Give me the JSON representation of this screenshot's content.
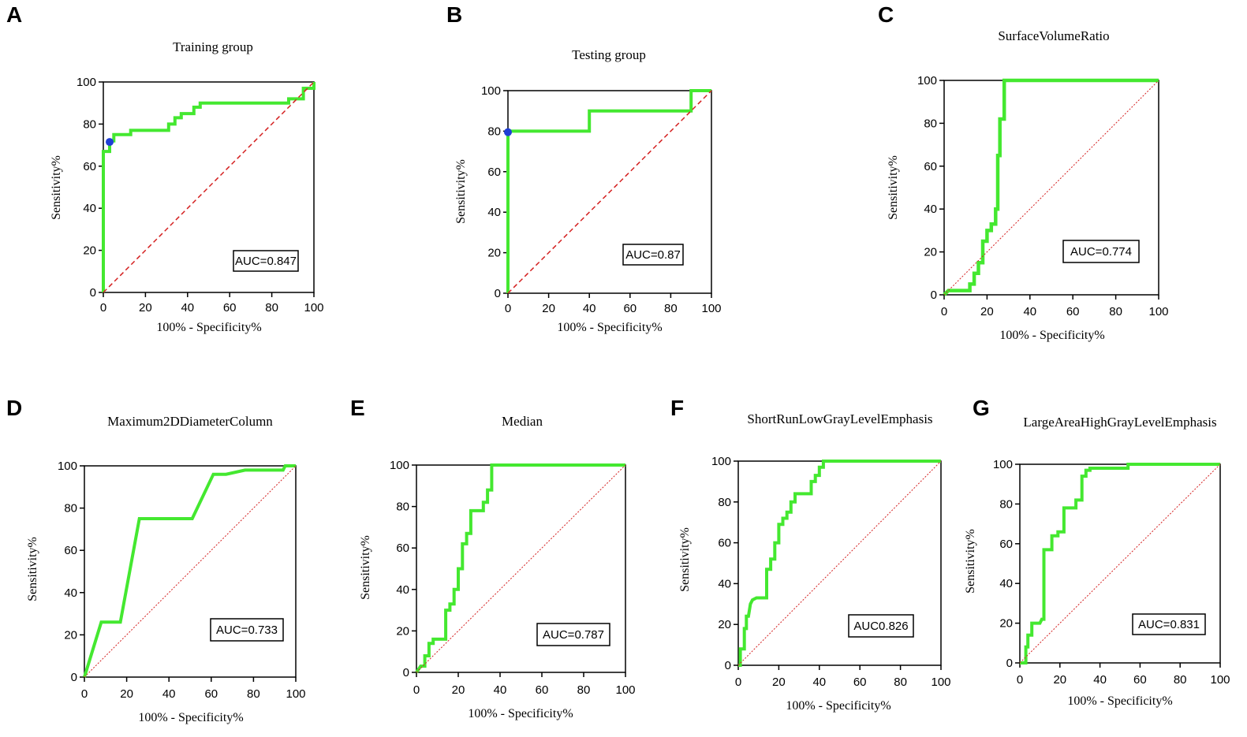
{
  "chart_data": [
    {
      "panel": "A",
      "type": "line",
      "title": "Training group",
      "xlabel": "100% - Specificity%",
      "ylabel": "Sensitivity%",
      "xlim": [
        0,
        100
      ],
      "ylim": [
        0,
        100
      ],
      "xticks": [
        "0",
        "20",
        "40",
        "60",
        "80",
        "100"
      ],
      "yticks": [
        "0",
        "20",
        "40",
        "60",
        "80",
        "100"
      ],
      "annotation": "AUC=0.847",
      "colors": {
        "roc": "#44e830",
        "reference": "#d42020",
        "marker": "#1f3fd6"
      },
      "reference_style": "dashed",
      "marker_point": {
        "x": 3,
        "y": 71.5
      },
      "series": [
        {
          "name": "ROC",
          "x": [
            0,
            0,
            3,
            3,
            5,
            5,
            13,
            13,
            31,
            31,
            34,
            34,
            37,
            37,
            43,
            43,
            46,
            46,
            88,
            88,
            95,
            95,
            100,
            100
          ],
          "y": [
            0,
            67,
            67,
            72,
            72,
            75,
            75,
            77,
            77,
            80,
            80,
            83,
            83,
            85,
            85,
            88,
            88,
            90,
            90,
            92,
            92,
            97,
            97,
            100
          ]
        },
        {
          "name": "Reference",
          "x": [
            0,
            100
          ],
          "y": [
            0,
            100
          ]
        }
      ]
    },
    {
      "panel": "B",
      "type": "line",
      "title": "Testing group",
      "xlabel": "100% - Specificity%",
      "ylabel": "Sensitivity%",
      "xlim": [
        0,
        100
      ],
      "ylim": [
        0,
        100
      ],
      "xticks": [
        "0",
        "20",
        "40",
        "60",
        "80",
        "100"
      ],
      "yticks": [
        "0",
        "20",
        "40",
        "60",
        "80",
        "100"
      ],
      "annotation": "AUC=0.87",
      "colors": {
        "roc": "#44e830",
        "reference": "#d42020",
        "marker": "#1f3fd6"
      },
      "reference_style": "dashed",
      "marker_point": {
        "x": 0,
        "y": 79.5
      },
      "series": [
        {
          "name": "ROC",
          "x": [
            0,
            0,
            40,
            40,
            90,
            90,
            100
          ],
          "y": [
            0,
            80,
            80,
            90,
            90,
            100,
            100
          ]
        },
        {
          "name": "Reference",
          "x": [
            0,
            100
          ],
          "y": [
            0,
            100
          ]
        }
      ]
    },
    {
      "panel": "C",
      "type": "line",
      "title": "SurfaceVolumeRatio",
      "xlabel": "100% - Specificity%",
      "ylabel": "Sensitivity%",
      "xlim": [
        0,
        100
      ],
      "ylim": [
        0,
        100
      ],
      "xticks": [
        "0",
        "20",
        "40",
        "60",
        "80",
        "100"
      ],
      "yticks": [
        "0",
        "20",
        "40",
        "60",
        "80",
        "100"
      ],
      "annotation": "AUC=0.774",
      "colors": {
        "roc": "#44e830",
        "reference": "#d42020"
      },
      "reference_style": "dotted",
      "series": [
        {
          "name": "ROC",
          "x": [
            0,
            2,
            12,
            12,
            14,
            14,
            16,
            16,
            18,
            18,
            20,
            20,
            22,
            22,
            24,
            24,
            25,
            25,
            26,
            26,
            28,
            28,
            100
          ],
          "y": [
            0,
            2,
            2,
            5,
            5,
            10,
            10,
            15,
            15,
            25,
            25,
            30,
            30,
            33,
            33,
            40,
            40,
            65,
            65,
            82,
            82,
            100,
            100
          ]
        },
        {
          "name": "Reference",
          "x": [
            0,
            100
          ],
          "y": [
            0,
            100
          ]
        }
      ]
    },
    {
      "panel": "D",
      "type": "line",
      "title": "Maximum2DDiameterColumn",
      "xlabel": "100% - Specificity%",
      "ylabel": "Sensitivity%",
      "xlim": [
        0,
        100
      ],
      "ylim": [
        0,
        100
      ],
      "xticks": [
        "0",
        "20",
        "40",
        "60",
        "80",
        "100"
      ],
      "yticks": [
        "0",
        "20",
        "40",
        "60",
        "80",
        "100"
      ],
      "annotation": "AUC=0.733",
      "colors": {
        "roc": "#44e830",
        "reference": "#d42020"
      },
      "reference_style": "dotted",
      "series": [
        {
          "name": "ROC",
          "x": [
            0,
            8,
            17,
            26,
            51,
            61,
            67,
            76,
            94,
            95,
            100
          ],
          "y": [
            0,
            26,
            26,
            75,
            75,
            96,
            96,
            98,
            98,
            100,
            100
          ]
        },
        {
          "name": "Reference",
          "x": [
            0,
            100
          ],
          "y": [
            0,
            100
          ]
        }
      ]
    },
    {
      "panel": "E",
      "type": "line",
      "title": "Median",
      "xlabel": "100% - Specificity%",
      "ylabel": "Sensitivity%",
      "xlim": [
        0,
        100
      ],
      "ylim": [
        0,
        100
      ],
      "xticks": [
        "0",
        "20",
        "40",
        "60",
        "80",
        "100"
      ],
      "yticks": [
        "0",
        "20",
        "40",
        "60",
        "80",
        "100"
      ],
      "annotation": "AUC=0.787",
      "colors": {
        "roc": "#44e830",
        "reference": "#d42020"
      },
      "reference_style": "dotted",
      "series": [
        {
          "name": "ROC",
          "x": [
            0,
            2,
            4,
            4,
            6,
            6,
            8,
            8,
            14,
            14,
            16,
            16,
            18,
            18,
            20,
            20,
            22,
            22,
            24,
            24,
            26,
            26,
            28,
            28,
            32,
            32,
            34,
            34,
            36,
            36,
            100
          ],
          "y": [
            0,
            3,
            3,
            8,
            8,
            14,
            14,
            16,
            16,
            30,
            30,
            33,
            33,
            40,
            40,
            50,
            50,
            62,
            62,
            67,
            67,
            78,
            78,
            78,
            78,
            82,
            82,
            88,
            88,
            100,
            100
          ]
        },
        {
          "name": "Reference",
          "x": [
            0,
            100
          ],
          "y": [
            0,
            100
          ]
        }
      ]
    },
    {
      "panel": "F",
      "type": "line",
      "title": "ShortRunLowGrayLevelEmphasis",
      "xlabel": "100% - Specificity%",
      "ylabel": "Sensitivity%",
      "xlim": [
        0,
        100
      ],
      "ylim": [
        0,
        100
      ],
      "xticks": [
        "0",
        "20",
        "40",
        "60",
        "80",
        "100"
      ],
      "yticks": [
        "0",
        "20",
        "40",
        "60",
        "80",
        "100"
      ],
      "annotation": "AUC0.826",
      "colors": {
        "roc": "#44e830",
        "reference": "#d42020"
      },
      "reference_style": "dotted",
      "series": [
        {
          "name": "ROC",
          "x": [
            0,
            1,
            1,
            3,
            3,
            4,
            4,
            5,
            6,
            7,
            9,
            14,
            14,
            16,
            16,
            18,
            18,
            20,
            20,
            22,
            22,
            24,
            24,
            26,
            26,
            28,
            28,
            36,
            36,
            38,
            38,
            40,
            40,
            42,
            42,
            100
          ],
          "y": [
            0,
            0,
            8,
            8,
            18,
            18,
            24,
            24,
            30,
            32,
            33,
            33,
            47,
            47,
            52,
            52,
            60,
            60,
            69,
            69,
            72,
            72,
            75,
            75,
            80,
            80,
            84,
            84,
            90,
            90,
            93,
            93,
            97,
            97,
            100,
            100
          ]
        },
        {
          "name": "Reference",
          "x": [
            0,
            100
          ],
          "y": [
            0,
            100
          ]
        }
      ]
    },
    {
      "panel": "G",
      "type": "line",
      "title": "LargeAreaHighGrayLevelEmphasis",
      "xlabel": "100% - Specificity%",
      "ylabel": "Sensitivity%",
      "xlim": [
        0,
        100
      ],
      "ylim": [
        0,
        100
      ],
      "xticks": [
        "0",
        "20",
        "40",
        "60",
        "80",
        "100"
      ],
      "yticks": [
        "0",
        "20",
        "40",
        "60",
        "80",
        "100"
      ],
      "annotation": "AUC=0.831",
      "colors": {
        "roc": "#44e830",
        "reference": "#d42020"
      },
      "reference_style": "dotted",
      "series": [
        {
          "name": "ROC",
          "x": [
            0,
            3,
            3,
            4,
            4,
            6,
            6,
            10,
            11,
            12,
            12,
            16,
            16,
            19,
            19,
            22,
            22,
            28,
            28,
            31,
            31,
            33,
            33,
            35,
            35,
            54,
            54,
            100
          ],
          "y": [
            0,
            0,
            8,
            8,
            14,
            14,
            20,
            20,
            22,
            22,
            57,
            57,
            64,
            64,
            66,
            66,
            78,
            78,
            82,
            82,
            94,
            94,
            97,
            97,
            98,
            98,
            100,
            100
          ]
        },
        {
          "name": "Reference",
          "x": [
            0,
            100
          ],
          "y": [
            0,
            100
          ]
        }
      ]
    }
  ]
}
